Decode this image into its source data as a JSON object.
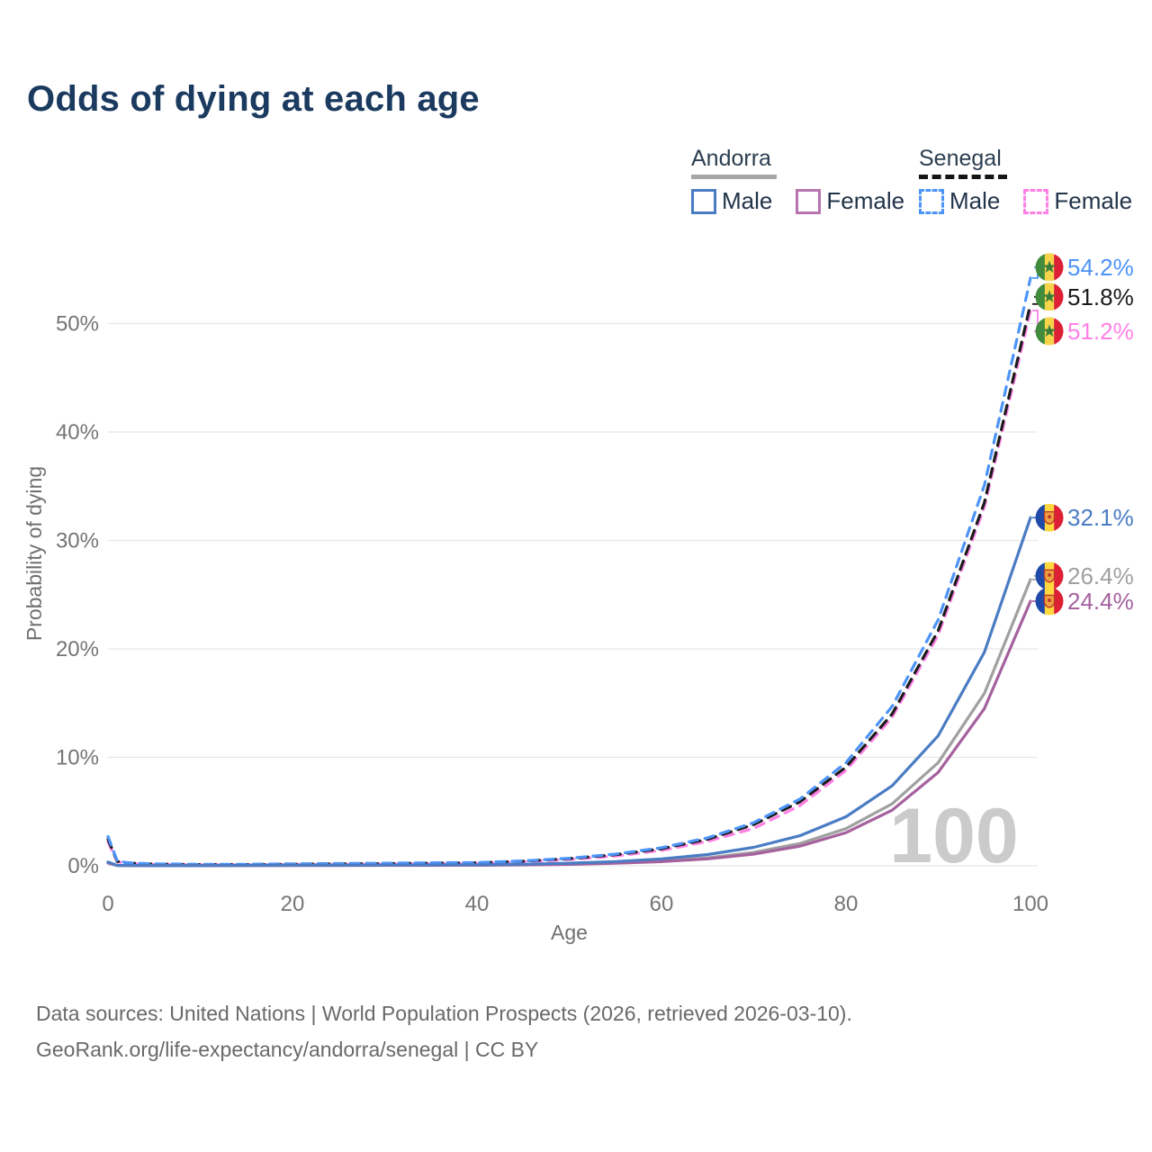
{
  "title": "Odds of dying at each age",
  "legend": {
    "andorra": {
      "title": "Andorra",
      "male": "Male",
      "female": "Female"
    },
    "senegal": {
      "title": "Senegal",
      "male": "Male",
      "female": "Female"
    }
  },
  "colors": {
    "andorra_male": "#4a7cc4",
    "andorra_female": "#a5619e",
    "andorra_all": "#a0a0a0",
    "senegal_male": "#4d94f8",
    "senegal_female": "#ff80e5",
    "senegal_all": "#1c1c1c",
    "title_color": "#1b3a5f",
    "grid_color": "#e7e7e7",
    "watermark_color": "#cbcbcb"
  },
  "watermark": "100",
  "footer": {
    "line1": "Data sources: United Nations | World Population Prospects (2026, retrieved 2026-03-10).",
    "line2": "GeoRank.org/life-expectancy/andorra/senegal | CC BY"
  },
  "chart_data": {
    "type": "line",
    "title": "Odds of dying at each age",
    "xlabel": "Age",
    "ylabel": "Probability of dying",
    "xlim": [
      0,
      100
    ],
    "ylim": [
      0,
      55
    ],
    "x_ticks": [
      0,
      20,
      40,
      60,
      80,
      100
    ],
    "y_ticks": [
      {
        "v": 0,
        "label": "0%"
      },
      {
        "v": 10,
        "label": "10%"
      },
      {
        "v": 20,
        "label": "20%"
      },
      {
        "v": 30,
        "label": "30%"
      },
      {
        "v": 40,
        "label": "40%"
      },
      {
        "v": 50,
        "label": "50%"
      }
    ],
    "grid": true,
    "legend_position": "top-right",
    "x": [
      0,
      1,
      2,
      3,
      5,
      10,
      15,
      20,
      25,
      30,
      35,
      40,
      45,
      50,
      55,
      60,
      65,
      70,
      75,
      80,
      85,
      90,
      95,
      100
    ],
    "series": [
      {
        "name": "Senegal Female",
        "country": "Senegal",
        "sex": "female",
        "color": "#ff80e5",
        "dashed": true,
        "flag": "senegal",
        "end_label": "51.2%",
        "end_value": 51.2,
        "label_y_offset": 23,
        "values": [
          2.2,
          0.37,
          0.24,
          0.2,
          0.15,
          0.11,
          0.11,
          0.13,
          0.15,
          0.18,
          0.21,
          0.25,
          0.37,
          0.58,
          0.9,
          1.42,
          2.25,
          3.45,
          5.55,
          8.8,
          13.7,
          21.3,
          33.1,
          51.2
        ]
      },
      {
        "name": "Senegal Both sexes",
        "country": "Senegal",
        "sex": "all",
        "color": "#1c1c1c",
        "dashed": true,
        "flag": "senegal",
        "end_label": "51.8%",
        "end_value": 51.8,
        "label_y_offset": -8,
        "values": [
          2.45,
          0.41,
          0.27,
          0.22,
          0.16,
          0.12,
          0.12,
          0.15,
          0.18,
          0.21,
          0.24,
          0.28,
          0.43,
          0.66,
          1.02,
          1.58,
          2.45,
          3.8,
          5.9,
          9.1,
          14.0,
          21.7,
          33.5,
          51.8
        ]
      },
      {
        "name": "Senegal Male",
        "country": "Senegal",
        "sex": "male",
        "color": "#4d94f8",
        "dashed": true,
        "flag": "senegal",
        "end_label": "54.2%",
        "end_value": 54.2,
        "label_y_offset": -12,
        "values": [
          2.7,
          0.45,
          0.3,
          0.24,
          0.18,
          0.13,
          0.14,
          0.18,
          0.21,
          0.24,
          0.27,
          0.3,
          0.45,
          0.7,
          1.08,
          1.67,
          2.58,
          3.98,
          6.16,
          9.51,
          14.7,
          22.7,
          35.1,
          54.2
        ]
      },
      {
        "name": "Andorra Both sexes",
        "country": "Andorra",
        "sex": "all",
        "color": "#a0a0a0",
        "dashed": false,
        "flag": "andorra",
        "end_label": "26.4%",
        "end_value": 26.4,
        "label_y_offset": -4,
        "values": [
          0.3,
          0.035,
          0.025,
          0.02,
          0.018,
          0.016,
          0.03,
          0.045,
          0.05,
          0.05,
          0.055,
          0.058,
          0.1,
          0.16,
          0.27,
          0.45,
          0.74,
          1.24,
          2.06,
          3.43,
          5.72,
          9.52,
          15.9,
          26.4
        ]
      },
      {
        "name": "Andorra Female",
        "country": "Andorra",
        "sex": "female",
        "color": "#a5619e",
        "dashed": false,
        "flag": "andorra",
        "end_label": "24.4%",
        "end_value": 24.4,
        "label_y_offset": 0,
        "values": [
          0.26,
          0.03,
          0.02,
          0.018,
          0.015,
          0.014,
          0.02,
          0.03,
          0.035,
          0.04,
          0.045,
          0.048,
          0.08,
          0.135,
          0.23,
          0.38,
          0.64,
          1.08,
          1.81,
          3.05,
          5.13,
          8.62,
          14.5,
          24.4
        ]
      },
      {
        "name": "Andorra Male",
        "country": "Andorra",
        "sex": "male",
        "color": "#4a7cc4",
        "dashed": false,
        "flag": "andorra",
        "end_label": "32.1%",
        "end_value": 32.1,
        "label_y_offset": 0,
        "values": [
          0.35,
          0.04,
          0.03,
          0.025,
          0.02,
          0.02,
          0.04,
          0.06,
          0.06,
          0.07,
          0.08,
          0.09,
          0.15,
          0.24,
          0.39,
          0.64,
          1.04,
          1.7,
          2.77,
          4.52,
          7.38,
          12.0,
          19.7,
          32.1
        ]
      }
    ]
  }
}
